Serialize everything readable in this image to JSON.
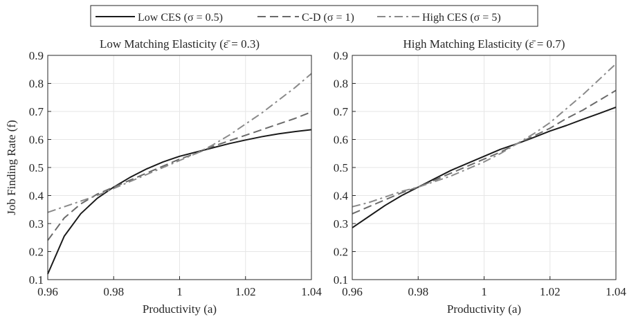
{
  "legend": {
    "items": [
      {
        "label": "Low CES (σ = 0.5)",
        "color": "#1a1a1a",
        "dash": "solid"
      },
      {
        "label": "C-D (σ = 1)",
        "color": "#6a6a6a",
        "dash": "dashed"
      },
      {
        "label": "High CES (σ = 5)",
        "color": "#8a8a8a",
        "dash": "dashdot"
      }
    ],
    "placement": "top-center"
  },
  "chart_data": [
    {
      "type": "line",
      "title": "Low Matching Elasticity (ε̄ = 0.3)",
      "xlabel": "Productivity (a)",
      "ylabel": "Job Finding Rate (f)",
      "xlim": [
        0.96,
        1.04
      ],
      "ylim": [
        0.1,
        0.9
      ],
      "xticks": [
        0.96,
        0.98,
        1,
        1.02,
        1.04
      ],
      "xtick_labels": [
        "0.96",
        "0.98",
        "1",
        "1.02",
        "1.04"
      ],
      "yticks": [
        0.1,
        0.2,
        0.3,
        0.4,
        0.5,
        0.6,
        0.7,
        0.8,
        0.9
      ],
      "ytick_labels": [
        "0.1",
        "0.2",
        "0.3",
        "0.4",
        "0.5",
        "0.6",
        "0.7",
        "0.8",
        "0.9"
      ],
      "grid": true,
      "x": [
        0.96,
        0.965,
        0.97,
        0.975,
        0.98,
        0.985,
        0.99,
        0.995,
        1.0,
        1.005,
        1.01,
        1.015,
        1.02,
        1.025,
        1.03,
        1.035,
        1.04
      ],
      "series": [
        {
          "name": "Low CES (σ = 0.5)",
          "values": [
            0.12,
            0.255,
            0.335,
            0.39,
            0.43,
            0.465,
            0.495,
            0.52,
            0.54,
            0.555,
            0.57,
            0.585,
            0.598,
            0.61,
            0.62,
            0.628,
            0.635
          ]
        },
        {
          "name": "C-D (σ = 1)",
          "values": [
            0.24,
            0.32,
            0.37,
            0.405,
            0.43,
            0.455,
            0.48,
            0.505,
            0.53,
            0.55,
            0.575,
            0.595,
            0.615,
            0.635,
            0.655,
            0.675,
            0.698
          ]
        },
        {
          "name": "High CES (σ = 5)",
          "values": [
            0.34,
            0.36,
            0.38,
            0.4,
            0.425,
            0.45,
            0.475,
            0.5,
            0.525,
            0.55,
            0.58,
            0.615,
            0.655,
            0.695,
            0.74,
            0.785,
            0.835
          ]
        }
      ]
    },
    {
      "type": "line",
      "title": "High Matching Elasticity (ε̄ = 0.7)",
      "xlabel": "Productivity (a)",
      "ylabel": "",
      "xlim": [
        0.96,
        1.04
      ],
      "ylim": [
        0.1,
        0.9
      ],
      "xticks": [
        0.96,
        0.98,
        1,
        1.02,
        1.04
      ],
      "xtick_labels": [
        "0.96",
        "0.98",
        "1",
        "1.02",
        "1.04"
      ],
      "yticks": [
        0.1,
        0.2,
        0.3,
        0.4,
        0.5,
        0.6,
        0.7,
        0.8,
        0.9
      ],
      "ytick_labels": [
        "0.1",
        "0.2",
        "0.3",
        "0.4",
        "0.5",
        "0.6",
        "0.7",
        "0.8",
        "0.9"
      ],
      "grid": true,
      "x": [
        0.96,
        0.965,
        0.97,
        0.975,
        0.98,
        0.985,
        0.99,
        0.995,
        1.0,
        1.005,
        1.01,
        1.015,
        1.02,
        1.025,
        1.03,
        1.035,
        1.04
      ],
      "series": [
        {
          "name": "Low CES (σ = 0.5)",
          "values": [
            0.285,
            0.325,
            0.365,
            0.4,
            0.43,
            0.46,
            0.49,
            0.515,
            0.54,
            0.565,
            0.585,
            0.607,
            0.63,
            0.65,
            0.672,
            0.693,
            0.715
          ]
        },
        {
          "name": "C-D (σ = 1)",
          "values": [
            0.335,
            0.36,
            0.385,
            0.41,
            0.43,
            0.455,
            0.48,
            0.505,
            0.53,
            0.555,
            0.585,
            0.612,
            0.64,
            0.675,
            0.705,
            0.74,
            0.775
          ]
        },
        {
          "name": "High CES (σ = 5)",
          "values": [
            0.36,
            0.375,
            0.395,
            0.415,
            0.43,
            0.45,
            0.47,
            0.495,
            0.52,
            0.55,
            0.585,
            0.62,
            0.66,
            0.71,
            0.76,
            0.815,
            0.87
          ]
        }
      ]
    }
  ]
}
